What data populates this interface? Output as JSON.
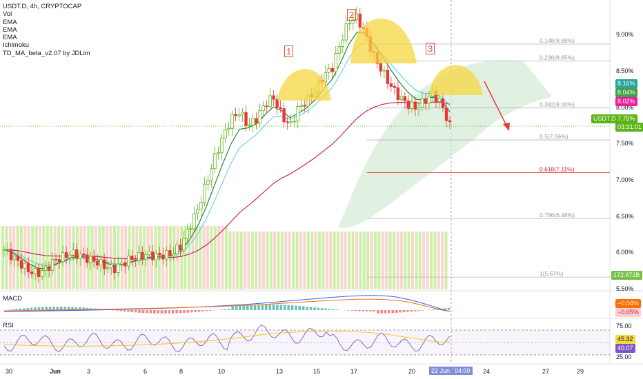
{
  "legend": {
    "title": "USDT.D, 4h, CRYPTOCAP",
    "indicators": [
      "Vol",
      "EMA",
      "EMA",
      "EMA",
      "Ichimoku",
      "TD_MA_beta_v2.07 by JDLim"
    ]
  },
  "panes": {
    "macd_label": "MACD",
    "rsi_label": "RSI"
  },
  "price_axis": {
    "ticks": [
      "9.00%",
      "8.50%",
      "8.00%",
      "7.50%",
      "7.00%",
      "6.50%",
      "6.00%",
      "5.50%"
    ]
  },
  "fib_levels": [
    {
      "label": "0.148(8.88%)",
      "value": 8.88
    },
    {
      "label": "0.236(8.65%)",
      "value": 8.65
    },
    {
      "label": "0.382(8.00%)",
      "value": 8.0
    },
    {
      "label": "0.5(7.56%)",
      "value": 7.56
    },
    {
      "label": "0.618(7.11%)",
      "value": 7.11
    },
    {
      "label": "0.786(6.48%)",
      "value": 6.48
    },
    {
      "label": "1(5.67%)",
      "value": 5.67
    }
  ],
  "badges": {
    "ema1": "8.16%",
    "ema2": "8.04%",
    "ema3": "8.02%",
    "symbol": "USDT.D",
    "price": "7.75%",
    "countdown": "03:31:01",
    "volume": "172.672B",
    "macd1": "−0.04%",
    "macd2": "−0.05%",
    "rsi1": "45.32",
    "rsi2": "40.07"
  },
  "rsi_axis": {
    "top": "75.00",
    "bottom": "25.00"
  },
  "pattern_labels": [
    "1",
    "2",
    "3"
  ],
  "time_axis": {
    "labels": [
      "30",
      "Jun",
      "3",
      "6",
      "8",
      "10",
      "13",
      "15",
      "17",
      "20",
      "22 Jun '22",
      "04:00",
      "24",
      "27",
      "29"
    ]
  },
  "colors": {
    "up": "#5bb318",
    "down": "#e53935",
    "ema_fast": "#2e7d32",
    "ema_mid": "#4dd0e1",
    "ema_slow": "#c2185b",
    "cloud": "#c8e6c9",
    "highlight": "#f5d742",
    "arrow": "#e53935"
  },
  "chart_data": {
    "type": "candlestick",
    "title": "USDT.D, 4h, CRYPTOCAP",
    "y_unit": "%",
    "ylim": [
      5.5,
      9.45
    ],
    "last_price": 7.75,
    "ema_values": [
      8.16,
      8.04,
      8.02
    ],
    "x_dates": [
      "30",
      "Jun",
      "3",
      "6",
      "8",
      "10",
      "13",
      "15",
      "17",
      "20",
      "22",
      "24",
      "27",
      "29"
    ],
    "price_path": [
      6.05,
      5.95,
      5.85,
      5.75,
      5.72,
      5.78,
      5.9,
      5.95,
      6.0,
      5.97,
      5.92,
      5.88,
      5.82,
      5.78,
      5.85,
      5.92,
      5.95,
      5.98,
      5.96,
      5.97,
      6.0,
      6.1,
      6.35,
      6.6,
      6.95,
      7.3,
      7.6,
      7.85,
      7.95,
      7.75,
      7.85,
      8.05,
      8.15,
      7.9,
      7.75,
      8.0,
      8.1,
      8.25,
      8.45,
      8.55,
      8.9,
      9.2,
      9.25,
      9.0,
      8.7,
      8.5,
      8.3,
      8.15,
      8.05,
      8.0,
      8.1,
      8.2,
      8.05,
      7.75
    ]
  }
}
